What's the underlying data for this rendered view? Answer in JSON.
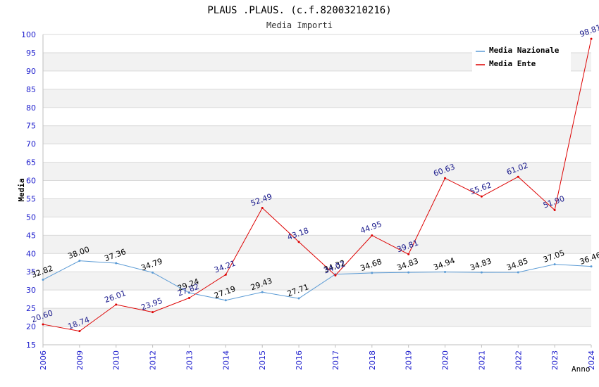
{
  "chart_data": {
    "type": "line",
    "title": "PLAUS .PLAUS. (c.f.82003210216)",
    "subtitle": "Media Importi",
    "xlabel": "Anno",
    "ylabel": "Media",
    "ylim": [
      15,
      100
    ],
    "ytick_step": 5,
    "grid": true,
    "legend_position": "top-right",
    "categories": [
      "2006",
      "2009",
      "2010",
      "2012",
      "2013",
      "2014",
      "2015",
      "2016",
      "2017",
      "2018",
      "2019",
      "2020",
      "2021",
      "2022",
      "2023",
      "2024"
    ],
    "series": [
      {
        "name": "Media Nazionale",
        "color": "#5b9bd5",
        "label_color": "#000000",
        "values": [
          32.82,
          38.0,
          37.36,
          34.79,
          29.24,
          27.19,
          29.43,
          27.71,
          34.32,
          34.68,
          34.83,
          34.94,
          34.83,
          34.85,
          37.05,
          36.46
        ],
        "labels": [
          "32.82",
          "38.00",
          "37.36",
          "34.79",
          "29.24",
          "27.19",
          "29.43",
          "27.71",
          "34.32",
          "34.68",
          "34.83",
          "34.94",
          "34.83",
          "34.85",
          "37.05",
          "36.46"
        ]
      },
      {
        "name": "Media Ente",
        "color": "#dd0000",
        "label_color": "#1a1a8c",
        "values": [
          20.6,
          18.74,
          26.01,
          23.95,
          27.82,
          34.21,
          52.49,
          43.18,
          34.02,
          44.95,
          39.81,
          60.63,
          55.62,
          61.02,
          51.9,
          98.81
        ],
        "labels": [
          "20.60",
          "18.74",
          "26.01",
          "23.95",
          "27.82",
          "34.21",
          "52.49",
          "43.18",
          "34.02",
          "44.95",
          "39.81",
          "60.63",
          "55.62",
          "61.02",
          "51.90",
          "98.81"
        ]
      }
    ],
    "colors": {
      "axis_text": "#1a1acc",
      "band": "#f2f2f2",
      "grid": "#d9d9d9",
      "axis": "#bfbfbf"
    }
  }
}
